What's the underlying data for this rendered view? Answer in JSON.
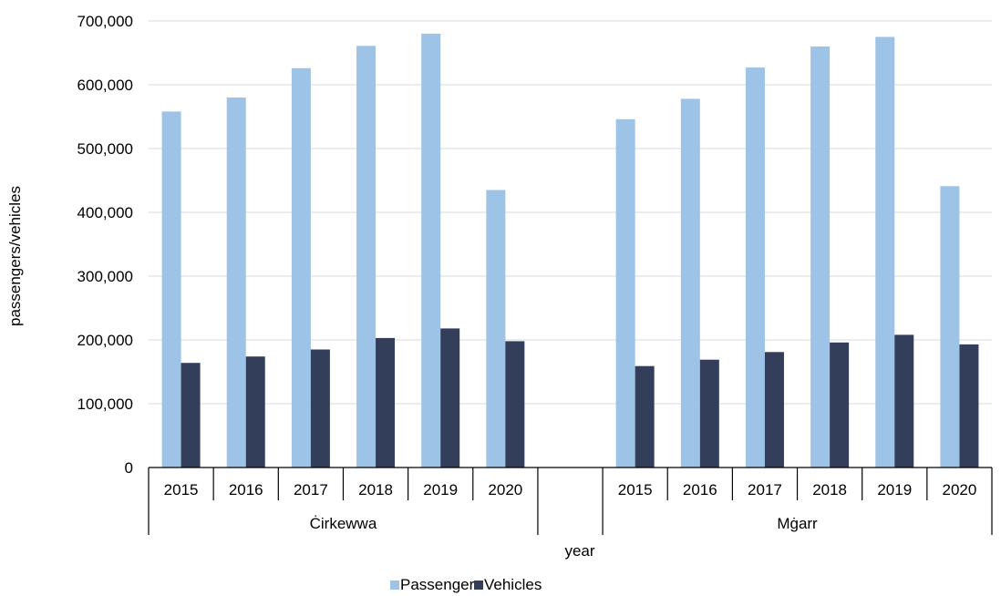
{
  "chart_data": {
    "type": "bar",
    "groups": [
      {
        "name": "Ċirkewwa",
        "categories": [
          "2015",
          "2016",
          "2017",
          "2018",
          "2019",
          "2020"
        ]
      },
      {
        "name": "",
        "categories": [
          ""
        ]
      },
      {
        "name": "Mġarr",
        "categories": [
          "2015",
          "2016",
          "2017",
          "2018",
          "2019",
          "2020"
        ]
      }
    ],
    "series": [
      {
        "name": "Passengers",
        "color": "#9DC3E6",
        "values": [
          558000,
          580000,
          626000,
          661000,
          680000,
          435000,
          null,
          546000,
          578000,
          627000,
          660000,
          675000,
          441000
        ]
      },
      {
        "name": "Vehicles",
        "color": "#323E5A",
        "values": [
          164000,
          174000,
          185000,
          203000,
          218000,
          198000,
          null,
          159000,
          169000,
          181000,
          196000,
          208000,
          193000
        ]
      }
    ],
    "xlabel": "year",
    "ylabel": "passengers/vehicles",
    "ylim": [
      0,
      700000
    ],
    "yticks": [
      "0",
      "100,000",
      "200,000",
      "300,000",
      "400,000",
      "500,000",
      "600,000",
      "700,000"
    ],
    "grid": true,
    "legend": "bottom"
  }
}
